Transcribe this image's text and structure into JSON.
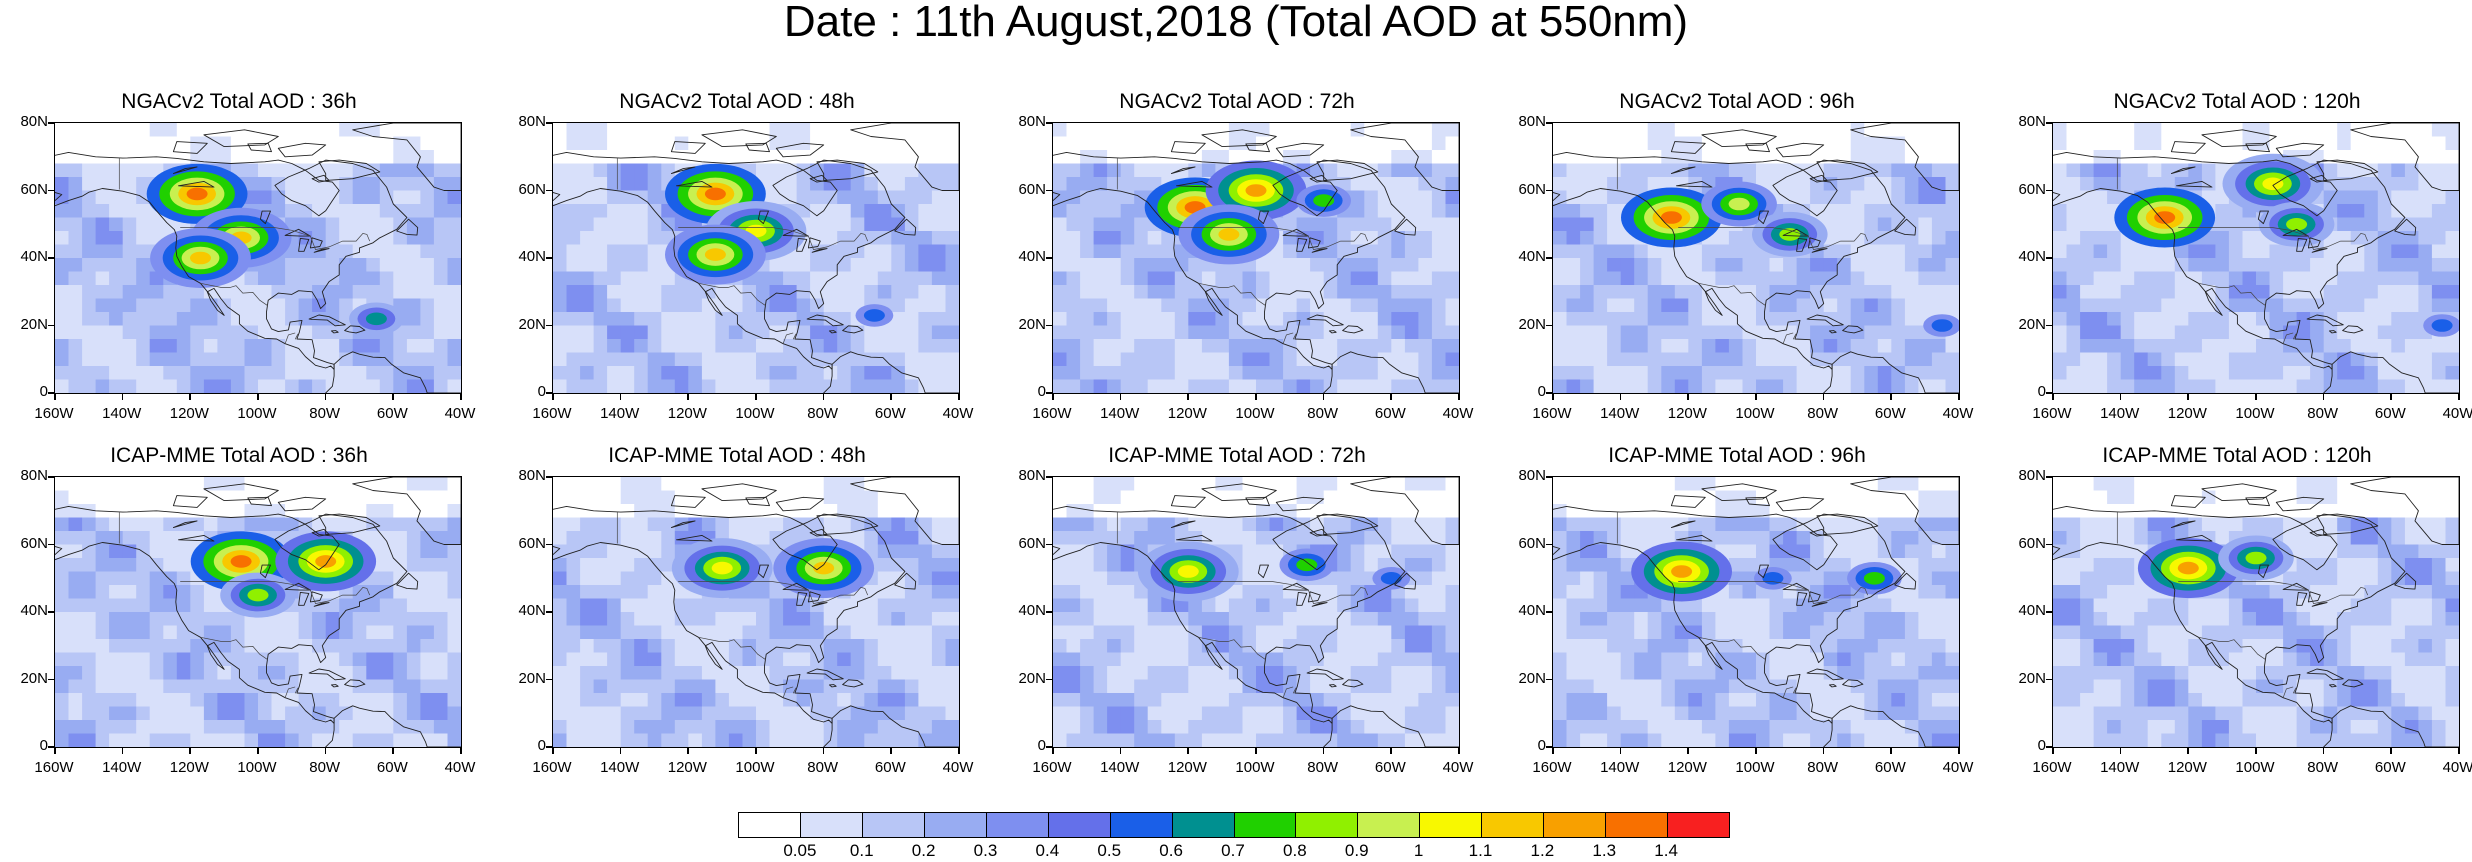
{
  "figure": {
    "title": "Date : 11th August,2018 (Total AOD at 550nm)"
  },
  "panels": [
    {
      "title": "NGACv2 Total AOD : 36h",
      "model": "NGACv2",
      "lead": "36h",
      "plumes": [
        {
          "lon": -118,
          "lat": 59,
          "level": 14
        },
        {
          "lon": -105,
          "lat": 46,
          "level": 12
        },
        {
          "lon": -117,
          "lat": 40,
          "level": 12
        },
        {
          "lon": -65,
          "lat": 22,
          "level": 7
        }
      ]
    },
    {
      "title": "NGACv2 Total AOD : 48h",
      "model": "NGACv2",
      "lead": "48h",
      "plumes": [
        {
          "lon": -112,
          "lat": 59,
          "level": 14
        },
        {
          "lon": -100,
          "lat": 48,
          "level": 11
        },
        {
          "lon": -112,
          "lat": 41,
          "level": 12
        },
        {
          "lon": -65,
          "lat": 23,
          "level": 6
        }
      ]
    },
    {
      "title": "NGACv2 Total AOD : 72h",
      "model": "NGACv2",
      "lead": "72h",
      "plumes": [
        {
          "lon": -118,
          "lat": 55,
          "level": 14
        },
        {
          "lon": -100,
          "lat": 60,
          "level": 13
        },
        {
          "lon": -108,
          "lat": 47,
          "level": 12
        },
        {
          "lon": -80,
          "lat": 57,
          "level": 8
        }
      ]
    },
    {
      "title": "NGACv2 Total AOD : 96h",
      "model": "NGACv2",
      "lead": "96h",
      "plumes": [
        {
          "lon": -125,
          "lat": 52,
          "level": 14
        },
        {
          "lon": -105,
          "lat": 56,
          "level": 10
        },
        {
          "lon": -90,
          "lat": 47,
          "level": 9
        },
        {
          "lon": -45,
          "lat": 20,
          "level": 6
        }
      ]
    },
    {
      "title": "NGACv2 Total AOD : 120h",
      "model": "NGACv2",
      "lead": "120h",
      "plumes": [
        {
          "lon": -127,
          "lat": 52,
          "level": 14
        },
        {
          "lon": -95,
          "lat": 62,
          "level": 11
        },
        {
          "lon": -88,
          "lat": 50,
          "level": 9
        },
        {
          "lon": -45,
          "lat": 20,
          "level": 6
        }
      ]
    },
    {
      "title": "ICAP-MME Total AOD : 36h",
      "model": "ICAP-MME",
      "lead": "36h",
      "plumes": [
        {
          "lon": -105,
          "lat": 55,
          "level": 14
        },
        {
          "lon": -80,
          "lat": 55,
          "level": 13
        },
        {
          "lon": -100,
          "lat": 45,
          "level": 9
        }
      ]
    },
    {
      "title": "ICAP-MME Total AOD : 48h",
      "model": "ICAP-MME",
      "lead": "48h",
      "plumes": [
        {
          "lon": -110,
          "lat": 53,
          "level": 11
        },
        {
          "lon": -80,
          "lat": 53,
          "level": 12
        }
      ]
    },
    {
      "title": "ICAP-MME Total AOD : 72h",
      "model": "ICAP-MME",
      "lead": "72h",
      "plumes": [
        {
          "lon": -120,
          "lat": 52,
          "level": 11
        },
        {
          "lon": -85,
          "lat": 54,
          "level": 8
        },
        {
          "lon": -60,
          "lat": 50,
          "level": 6
        }
      ]
    },
    {
      "title": "ICAP-MME Total AOD : 96h",
      "model": "ICAP-MME",
      "lead": "96h",
      "plumes": [
        {
          "lon": -122,
          "lat": 52,
          "level": 13
        },
        {
          "lon": -65,
          "lat": 50,
          "level": 8
        },
        {
          "lon": -95,
          "lat": 50,
          "level": 6
        }
      ]
    },
    {
      "title": "ICAP-MME Total AOD : 120h",
      "model": "ICAP-MME",
      "lead": "120h",
      "plumes": [
        {
          "lon": -120,
          "lat": 53,
          "level": 13
        },
        {
          "lon": -100,
          "lat": 56,
          "level": 9
        }
      ]
    }
  ],
  "axes": {
    "lon_range": [
      -160,
      -40
    ],
    "lat_range": [
      0,
      80
    ],
    "lat_ticks": [
      "80N",
      "60N",
      "40N",
      "20N",
      "0"
    ],
    "lon_ticks": [
      "160W",
      "140W",
      "120W",
      "100W",
      "80W",
      "60W",
      "40W"
    ]
  },
  "colorbar": {
    "levels": [
      "0.05",
      "0.1",
      "0.2",
      "0.3",
      "0.4",
      "0.5",
      "0.6",
      "0.7",
      "0.8",
      "0.9",
      "1",
      "1.1",
      "1.2",
      "1.3",
      "1.4"
    ],
    "colors": [
      "#ffffff",
      "#d8e0fa",
      "#b8c6f6",
      "#98acf2",
      "#7e8ff0",
      "#6470ea",
      "#1a5fe8",
      "#009090",
      "#20d000",
      "#90f000",
      "#c8f050",
      "#f8f800",
      "#f8c800",
      "#f8a000",
      "#f87000",
      "#f82020"
    ]
  }
}
